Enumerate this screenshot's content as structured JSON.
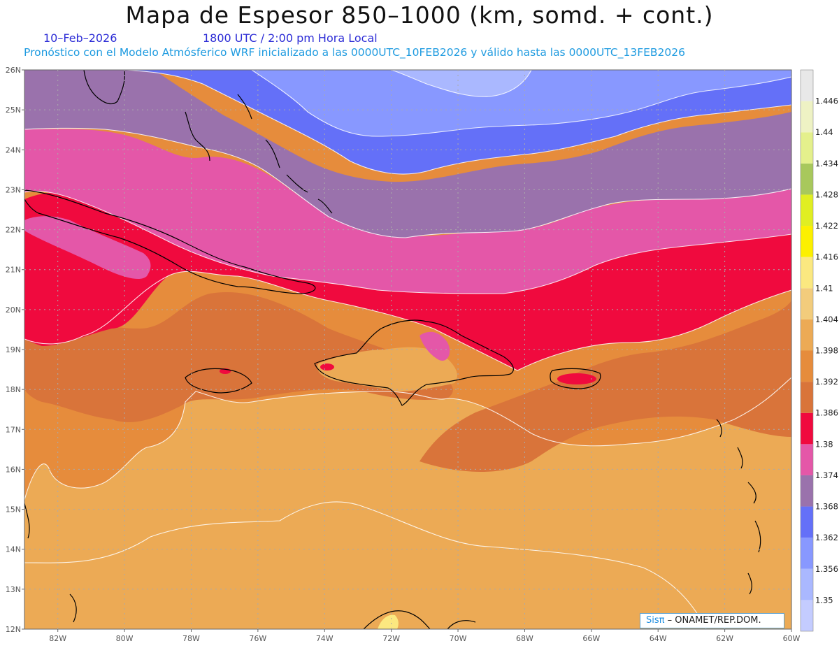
{
  "header": {
    "title": "Mapa de Espesor 850–1000 (km, somd. + cont.)",
    "date": "10–Feb–2026",
    "time": "1800 UTC / 2:00 pm Hora Local",
    "description": "Pronóstico con el Modelo Atmósferico WRF inicializado a las 0000UTC_10FEB2026 y válido hasta las  0000UTC_13FEB2026"
  },
  "map": {
    "lat_range": [
      12,
      26
    ],
    "lon_range": [
      -83,
      -60
    ],
    "lat_ticks": [
      "12N",
      "13N",
      "14N",
      "15N",
      "16N",
      "17N",
      "18N",
      "19N",
      "20N",
      "21N",
      "22N",
      "23N",
      "24N",
      "25N",
      "26N"
    ],
    "lon_ticks": [
      "82W",
      "80W",
      "78W",
      "76W",
      "74W",
      "72W",
      "70W",
      "68W",
      "66W",
      "64W",
      "62W",
      "60W"
    ],
    "grid": true
  },
  "colorbar": {
    "levels": [
      "1.35",
      "1.356",
      "1.362",
      "1.368",
      "1.374",
      "1.38",
      "1.386",
      "1.392",
      "1.398",
      "1.404",
      "1.41",
      "1.416",
      "1.422",
      "1.428",
      "1.434",
      "1.44",
      "1.446"
    ],
    "colors": [
      "#c4ccff",
      "#aab8ff",
      "#8898ff",
      "#6470f8",
      "#9a72ac",
      "#e457a8",
      "#f00a3e",
      "#d9743a",
      "#e68c3c",
      "#ecaa55",
      "#f2cc7c",
      "#fbe880",
      "#fcf000",
      "#e0ee22",
      "#a8c85c",
      "#e4f08c",
      "#eef2c4",
      "#e8e8e8"
    ]
  },
  "credit": {
    "sis": "Sisπ",
    "org": "– ONAMET/REP.DOM."
  }
}
